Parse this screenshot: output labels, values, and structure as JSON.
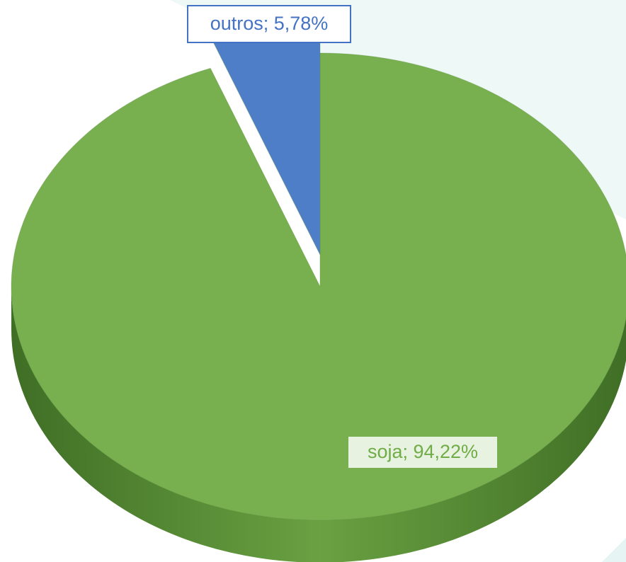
{
  "chart_data": {
    "type": "pie",
    "categories": [
      "soja",
      "outros"
    ],
    "values": [
      94.22,
      5.78
    ],
    "value_labels": [
      "soja; 94,22%",
      "outros; 5,78%"
    ],
    "series": [
      {
        "name": "soja",
        "color": "#78b050"
      },
      {
        "name": "outros",
        "color": "#4f7ec9"
      }
    ]
  }
}
